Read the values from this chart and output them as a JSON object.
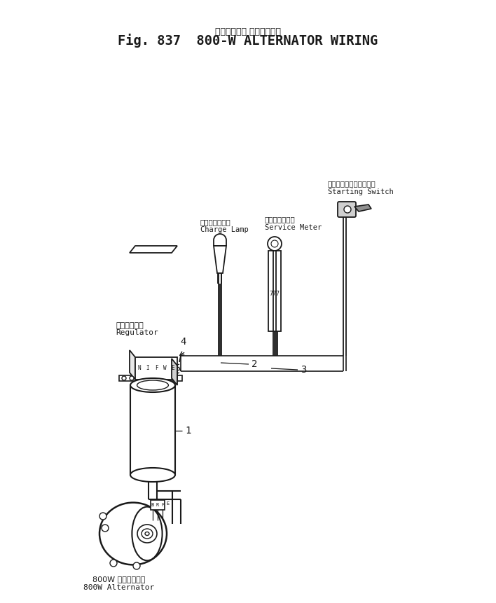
{
  "title_jp": "オルタネータ ワイヤリング",
  "title_en": "Fig. 837  800-W ALTERNATOR WIRING",
  "bg_color": "#ffffff",
  "line_color": "#1a1a1a",
  "labels": {
    "regulator_jp": "レギュレータ",
    "regulator_en": "Regulator",
    "charge_lamp_jp": "チャージランプ",
    "charge_lamp_en": "Charge Lamp",
    "service_meter_jp": "サービスメータ",
    "service_meter_en": "Service Meter",
    "starting_switch_jp": "スターティングスイッチ",
    "starting_switch_en": "Starting Switch",
    "alternator_jp": "800W オルタネータ",
    "alternator_en": "800W Alternator",
    "label_1": "1",
    "label_2": "2",
    "label_3": "3",
    "label_4": "4"
  },
  "figsize": [
    7.08,
    8.61
  ],
  "dpi": 100
}
